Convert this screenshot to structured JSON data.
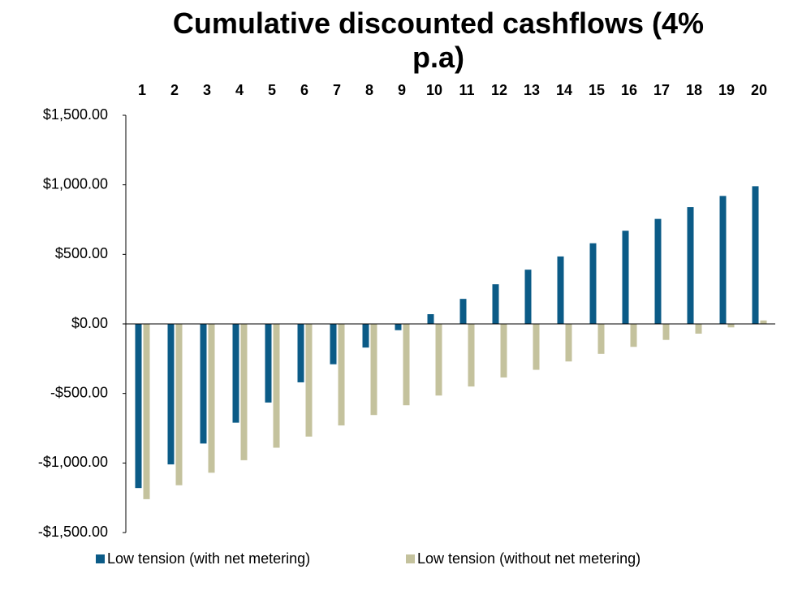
{
  "chart_data": {
    "type": "bar",
    "title": "Cumulative discounted cashflows (4% p.a)",
    "categories": [
      "1",
      "2",
      "3",
      "4",
      "5",
      "6",
      "7",
      "8",
      "9",
      "10",
      "11",
      "12",
      "13",
      "14",
      "15",
      "16",
      "17",
      "18",
      "19",
      "20"
    ],
    "series": [
      {
        "name": "Low tension (with net metering)",
        "color": "#0b5b87",
        "values": [
          -1180,
          -1010,
          -860,
          -710,
          -565,
          -420,
          -290,
          -170,
          -45,
          70,
          180,
          285,
          390,
          485,
          580,
          670,
          755,
          840,
          920,
          990
        ]
      },
      {
        "name": "Low tension (without net metering)",
        "color": "#c4c29d",
        "values": [
          -1260,
          -1160,
          -1070,
          -980,
          -890,
          -810,
          -730,
          -655,
          -585,
          -515,
          -450,
          -385,
          -330,
          -270,
          -215,
          -165,
          -115,
          -70,
          -25,
          25
        ]
      }
    ],
    "ylim": [
      -1500,
      1500
    ],
    "yticks": [
      {
        "value": 1500,
        "label": "$1,500.00"
      },
      {
        "value": 1000,
        "label": "$1,000.00"
      },
      {
        "value": 500,
        "label": "$500.00"
      },
      {
        "value": 0,
        "label": "$0.00"
      },
      {
        "value": -500,
        "label": "-$500.00"
      },
      {
        "value": -1000,
        "label": "-$1,000.00"
      },
      {
        "value": -1500,
        "label": "-$1,500.00"
      }
    ],
    "grid": false,
    "legend": "bottom"
  }
}
